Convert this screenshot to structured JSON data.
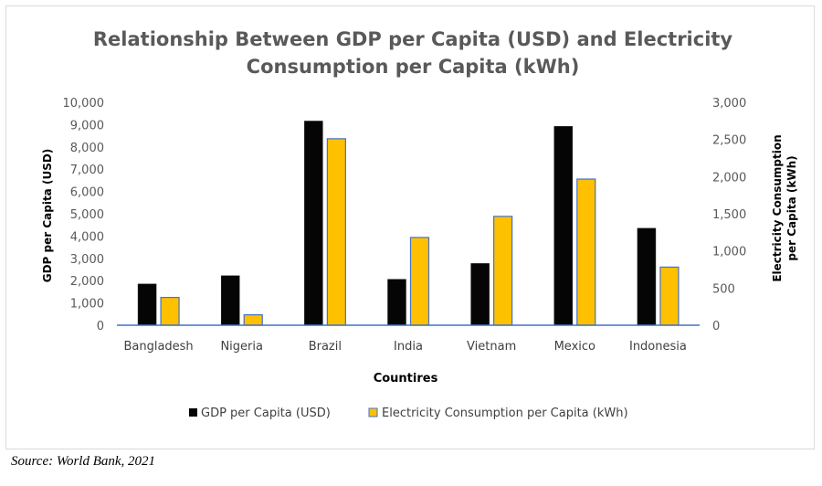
{
  "chart_data": {
    "type": "bar",
    "title_lines": [
      "Relationship Between GDP per Capita (USD) and Electricity",
      "Consumption per Capita (kWh)"
    ],
    "xlabel": "Countires",
    "ylabel": "GDP per Capita (USD)",
    "y2label_lines": [
      "Electricity Consumption",
      "per Capita (kWh)"
    ],
    "categories": [
      "Bangladesh",
      "Nigeria",
      "Brazil",
      "India",
      "Vietnam",
      "Mexico",
      "Indonesia"
    ],
    "ylim": [
      0,
      10000
    ],
    "y2lim": [
      0,
      3000
    ],
    "yticks": [
      "0",
      "1,000",
      "2,000",
      "3,000",
      "4,000",
      "5,000",
      "6,000",
      "7,000",
      "8,000",
      "9,000",
      "10,000"
    ],
    "y2ticks": [
      "0",
      "500",
      "1,000",
      "1,500",
      "2,000",
      "2,500",
      "3,000"
    ],
    "grid": false,
    "legend_position": "bottom",
    "series": [
      {
        "name": "GDP per Capita (USD)",
        "axis": "left",
        "color": "#050505",
        "values": [
          1850,
          2220,
          9160,
          2060,
          2770,
          8920,
          4350
        ]
      },
      {
        "name": "Electricity Consumption per Capita (kWh)",
        "axis": "right",
        "color": "#FFC000",
        "edge": "#4472C4",
        "values": [
          374,
          140,
          2510,
          1181,
          1465,
          1967,
          782
        ]
      }
    ],
    "axis_color": "#4472C4"
  },
  "source": "Source: World Bank, 2021"
}
